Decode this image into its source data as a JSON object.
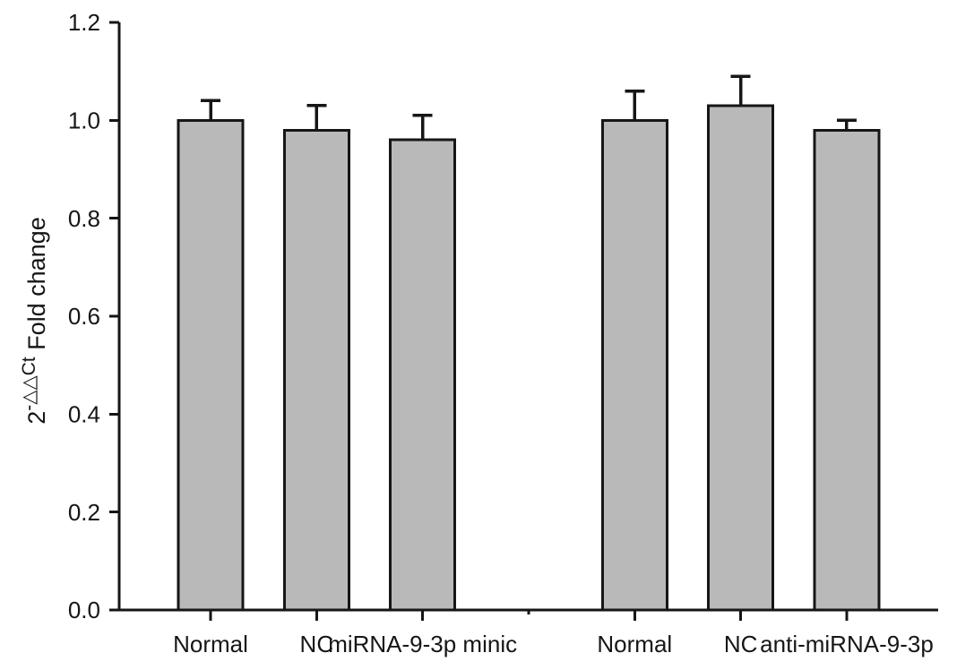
{
  "figure": {
    "background": "#ffffff",
    "bar_fill": "#b9b9b9",
    "line_color": "#161616"
  },
  "chart_data": {
    "type": "bar",
    "title": "",
    "xlabel": "",
    "ylabel": {
      "base": "2",
      "superscript": "-△△Ct",
      "rest": " Fold change"
    },
    "ylim": [
      0.0,
      1.2
    ],
    "ytick_step": 0.2,
    "ytick_labels": [
      "0.0",
      "0.2",
      "0.4",
      "0.6",
      "0.8",
      "1.0",
      "1.2"
    ],
    "grid": false,
    "legend": "none",
    "error_bars": "upper only, cap style T",
    "categories": [
      "Normal",
      "NC",
      "miRNA-9-3p minic",
      "",
      "Normal",
      "NC",
      "anti-miRNA-9-3p"
    ],
    "series": [
      {
        "name": "2^-ddCt fold change",
        "values": [
          1.0,
          0.98,
          0.96,
          null,
          1.0,
          1.03,
          0.98
        ],
        "errors": [
          0.04,
          0.05,
          0.05,
          null,
          0.06,
          0.06,
          0.02
        ]
      }
    ],
    "groups_note": "two groups of three bars separated by one empty category slot"
  }
}
